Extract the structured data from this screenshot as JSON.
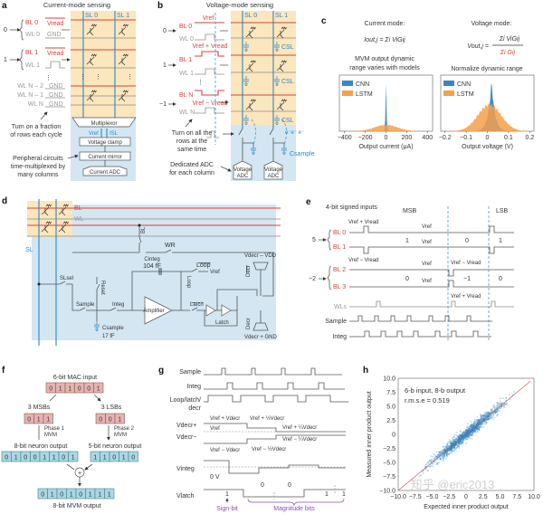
{
  "colors": {
    "bl": "#d9413b",
    "wl": "#9a9a9a",
    "sl": "#2f87c4",
    "array_bg": "#fbe6bd",
    "periph_bg": "#d3e6f2",
    "cnn": "#3a86c4",
    "lstm": "#f5a04a",
    "bits_pink": "#e6b4b0",
    "bits_blue": "#a9d7e3",
    "fit_line": "#c0504d",
    "annot": "#8a4fb0"
  },
  "a": {
    "label": "a",
    "title": "Current-mode sensing",
    "sl0": "SL 0",
    "sl1": "SL 1",
    "in0": "0",
    "in1": "1",
    "bl0": "BL 0",
    "wl0": "WL 0",
    "bl1": "BL 1",
    "wl1": "WL 1",
    "wln2": "WL N – 2",
    "wln1": "WL N – 1",
    "wln": "WL N",
    "vread": "Vread",
    "gnd": "GND",
    "note1": [
      "Turn on a fraction",
      "of rows each cycle"
    ],
    "mux": "Multiplexor",
    "vref": "Vref",
    "isl": "ISL",
    "clamp": "Voltage clamp",
    "mirror": "Current mirror",
    "adc": "Current ADC",
    "note2": [
      "Peripheral circuits",
      "time-multiplexed by",
      "many columns"
    ]
  },
  "b": {
    "label": "b",
    "title": "Voltage-mode sensing",
    "sl0": "SL 0",
    "sl1": "SL 1",
    "in0": "0",
    "in1": "1",
    "inn": "−1",
    "bl0": "BL 0",
    "wl0": "WL 0",
    "bl1": "BL 1",
    "wl1": "WL 1",
    "bln": "BL N",
    "wln": "WL N",
    "vref": "Vref",
    "vplus": "Vref + Vread",
    "vminus": "Vref − Vread",
    "csl": "CSL",
    "csample": "Csample",
    "electrons": "e⁻e⁻ e⁻",
    "note1": [
      "Turn on all the",
      "rows at the",
      "same time"
    ],
    "note2": [
      "Dedicated ADC",
      "for each column"
    ],
    "adc": [
      "Voltage",
      "ADC"
    ]
  },
  "c": {
    "label": "c",
    "current_mode": "Current mode:",
    "current_formula": "Iout,j = Σi ViGij",
    "voltage_mode": "Voltage mode:",
    "voltage_formula_lhs": "Vout,j =",
    "voltage_num": "Σi ViGij",
    "voltage_den": "Σi Gij",
    "left_title": [
      "MVM output dynamic",
      "range varies with models"
    ],
    "right_title": "Normalize dynamic range"
  },
  "d": {
    "label": "d",
    "bl": "BL",
    "wl": "WL",
    "sl": "SL",
    "bl_sw": "BL",
    "wr": "WR",
    "cinteg": "Cinteg",
    "cinteg_val": "104 fF",
    "loop_bar": "Loop",
    "loop": "Loop",
    "vref": "Vref",
    "vdecr_vdd": "Vdecr – VDD",
    "decr_bar": "Decr",
    "decr": "Decr",
    "slsel": "SLsel",
    "reset": "Reset",
    "sample": "Sample",
    "integ": "Integ",
    "amplifier": "Amplifier",
    "latch_bar": "Latch",
    "latch": "Latch",
    "csample": "Csample",
    "csample_val": "17 fF",
    "vdecr_gnd": "Vdecr + GND"
  },
  "e": {
    "label": "e",
    "title": "4-bit signed inputs",
    "msb": "MSB",
    "lsb": "LSB",
    "in5": "5",
    "inm2": "−2",
    "bl0": "BL 0",
    "bl1": "BL 1",
    "bl2": "BL 2",
    "bl3": "BL 3",
    "wls": "WLs",
    "sample": "Sample",
    "integ": "Integ",
    "vplus": "Vref + Vread",
    "vminus": "Vref − Vread",
    "vref": "Vref",
    "bits_top": [
      "1",
      "0",
      "1"
    ],
    "bits_bottom": [
      "0",
      "−1",
      "0"
    ]
  },
  "f": {
    "label": "f",
    "mac_title": "6-bit MAC input",
    "mac_bits": [
      "0",
      "1",
      "1",
      "0",
      "0",
      "1"
    ],
    "msbs_title": "3 MSBs",
    "msbs": [
      "0",
      "1",
      "1"
    ],
    "lsbs_title": "3 LSBs",
    "lsbs": [
      "0",
      "0",
      "1"
    ],
    "phase1": [
      "Phase 1",
      "MVM"
    ],
    "phase2": [
      "Phase 2",
      "MVM"
    ],
    "out8_title": "8-bit neuron output",
    "out8": [
      "0",
      "1",
      "0",
      "0",
      "1",
      "1",
      "0",
      "1"
    ],
    "out5_title": "5-bit neuron output",
    "out5": [
      "1",
      "1",
      "0",
      "1",
      "0"
    ],
    "plus": "+",
    "mvm_bits": [
      "0",
      "1",
      "0",
      "1",
      "0",
      "1",
      "1",
      "1"
    ],
    "mvm_title": "8-bit MVM output"
  },
  "g": {
    "label": "g",
    "sample": "Sample",
    "integ": "Integ",
    "loop": [
      "Loop/latch/",
      "decr"
    ],
    "vdecr_plus": "Vdecr+",
    "vdecr_minus": "Vdecr−",
    "vinteg": "Vinteg",
    "vlatch": "Vlatch",
    "t1": "Vref + Vdecr",
    "t2": "Vref + ½Vdecr",
    "t3": "Vref + ¼Vdecr",
    "t4": "Vref",
    "t5": "Vref − ¼Vdecr",
    "t6": "Vref − Vdecr",
    "t7": "Vref − ½Vdecr",
    "zero": "0 V",
    "latch_bits": [
      "1",
      "0",
      "0",
      "1",
      "1"
    ],
    "sign": "Sign-bit",
    "magnitude": "Magnitude bits"
  },
  "h": {
    "label": "h",
    "watermark": "知乎 @eric2013"
  },
  "chart_data": [
    {
      "type": "area",
      "panel": "c-left",
      "title": "MVM output dynamic range varies with models",
      "xlabel": "Output current (μA)",
      "ylabel": "",
      "xlim": [
        -450,
        450
      ],
      "xticks": [
        -400,
        -200,
        0,
        200,
        400
      ],
      "legend": "top-left",
      "grid": false,
      "series": [
        {
          "name": "CNN",
          "color": "#3a86c4",
          "center": 0,
          "spread": 8
        },
        {
          "name": "LSTM",
          "color": "#f5a04a",
          "center": 0,
          "spread": 110
        }
      ]
    },
    {
      "type": "area",
      "panel": "c-right",
      "title": "Normalize dynamic range",
      "xlabel": "Output voltage (V)",
      "ylabel": "",
      "xlim": [
        -0.22,
        0.22
      ],
      "xticks": [
        -0.2,
        -0.1,
        0,
        0.1,
        0.2
      ],
      "legend": "top-left",
      "grid": false,
      "series": [
        {
          "name": "CNN",
          "color": "#3a86c4",
          "center": 0.02,
          "spread": 0.025
        },
        {
          "name": "LSTM",
          "color": "#f5a04a",
          "center": 0.01,
          "spread": 0.055
        }
      ]
    },
    {
      "type": "scatter",
      "panel": "h",
      "xlabel": "Expected inner product output",
      "ylabel": "Measured inner product output",
      "xlim": [
        -10,
        10
      ],
      "ylim": [
        -10,
        10
      ],
      "xticks": [
        -10.0,
        -7.5,
        -5.0,
        -2.5,
        0,
        2.5,
        5.0,
        7.5,
        10.0
      ],
      "yticks": [
        10.0,
        7.5,
        5.0,
        2.5,
        0,
        -2.5,
        -5.0,
        -7.5,
        -10.0
      ],
      "annotations": [
        "6-b input, 8-b output",
        "r.m.s.e = 0.519"
      ],
      "rmse": 0.519,
      "data_range": [
        -7.5,
        7.5
      ],
      "reference_line": "y = x",
      "point_color": "#2f87c4",
      "grid": false
    }
  ]
}
